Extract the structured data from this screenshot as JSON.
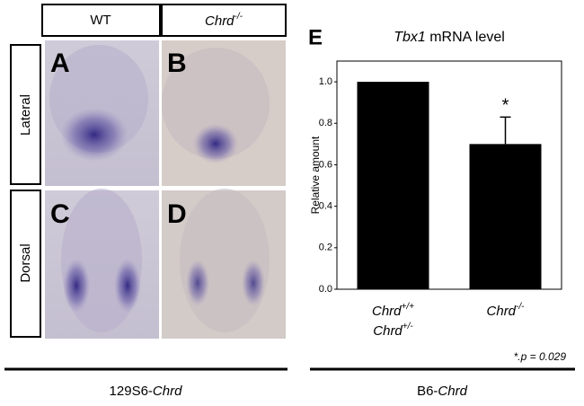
{
  "column_headers": [
    {
      "text": "WT"
    },
    {
      "text": "Chrd",
      "sup": "-/-"
    }
  ],
  "row_labels": [
    "Lateral",
    "Dorsal"
  ],
  "panel_letters": [
    "A",
    "B",
    "C",
    "D"
  ],
  "strain_labels": [
    {
      "text": "129S6-",
      "gene": "Chrd"
    },
    {
      "text": "B6-",
      "gene": "Chrd"
    }
  ],
  "chart_data": {
    "type": "bar",
    "panel_label": "E",
    "title": {
      "gene": "Tbx1",
      "text": "mRNA level"
    },
    "ylabel": "Relative amount",
    "categories": [
      [
        {
          "text": "Chrd",
          "sup": "+/+"
        },
        {
          "text": "Chrd",
          "sup": "+/-"
        }
      ],
      [
        {
          "text": "Chrd",
          "sup": "-/-"
        }
      ]
    ],
    "values": [
      1.0,
      0.7
    ],
    "errors": [
      null,
      0.13
    ],
    "significance": [
      null,
      "*"
    ],
    "color": "#000000",
    "ylim": [
      0,
      1.1
    ],
    "yticks": [
      {
        "value": 0,
        "label": "0.0"
      },
      0.2,
      0.4,
      0.6,
      0.8,
      {
        "value": 1,
        "label": "1.0"
      }
    ],
    "note": "*.p = 0.029"
  }
}
